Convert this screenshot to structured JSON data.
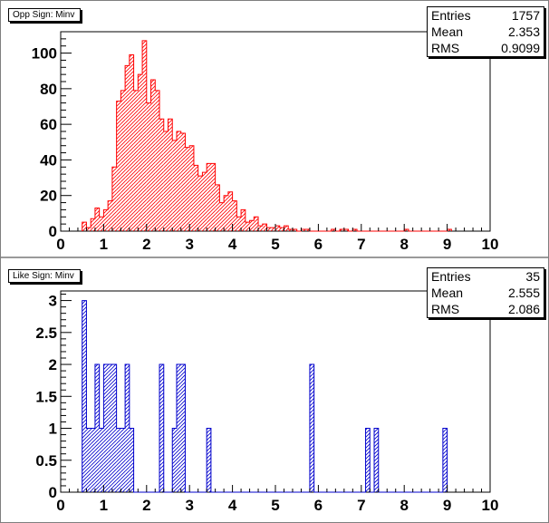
{
  "chart_data": [
    {
      "type": "bar",
      "title": "Opp Sign: Minv",
      "stats": [
        {
          "label": "Entries",
          "value": "1757"
        },
        {
          "label": "Mean",
          "value": "2.353"
        },
        {
          "label": "RMS",
          "value": "0.9099"
        }
      ],
      "xlim": [
        0,
        10
      ],
      "ylim": [
        0,
        112
      ],
      "xticks": [
        0,
        1,
        2,
        3,
        4,
        5,
        6,
        7,
        8,
        9,
        10
      ],
      "yticks": [
        0,
        20,
        40,
        60,
        80,
        100
      ],
      "bin_width": 0.1,
      "x": [
        0.5,
        0.6,
        0.7,
        0.8,
        0.9,
        1.0,
        1.1,
        1.2,
        1.3,
        1.4,
        1.5,
        1.6,
        1.7,
        1.8,
        1.9,
        2.0,
        2.1,
        2.2,
        2.3,
        2.4,
        2.5,
        2.6,
        2.7,
        2.8,
        2.9,
        3.0,
        3.1,
        3.2,
        3.3,
        3.4,
        3.5,
        3.6,
        3.7,
        3.8,
        3.9,
        4.0,
        4.1,
        4.2,
        4.3,
        4.4,
        4.5,
        4.6,
        4.7,
        4.8,
        4.9,
        5.0,
        5.1,
        5.2,
        5.3,
        5.4,
        5.5,
        5.6,
        5.7,
        5.8,
        5.9,
        6.0,
        6.1,
        6.2,
        6.3,
        6.4,
        6.5,
        6.6,
        6.7,
        6.8,
        6.9,
        7.0,
        7.1,
        7.2,
        7.3,
        7.4,
        7.5,
        7.6,
        7.7,
        7.8,
        7.9,
        8.0,
        8.1,
        8.2,
        8.3,
        8.4,
        8.5,
        8.6,
        8.7,
        8.8,
        8.9,
        9.0
      ],
      "values": [
        5,
        2,
        7,
        13,
        8,
        12,
        17,
        36,
        73,
        79,
        93,
        99,
        79,
        88,
        107,
        72,
        85,
        79,
        63,
        56,
        63,
        51,
        56,
        55,
        47,
        48,
        37,
        31,
        33,
        38,
        38,
        26,
        16,
        20,
        22,
        17,
        8,
        12,
        5,
        6,
        8,
        3,
        4,
        2,
        2,
        3,
        2,
        3,
        1,
        1,
        0,
        1,
        1,
        0,
        0,
        0,
        0,
        0,
        1,
        0,
        1,
        1,
        0,
        1,
        0,
        0,
        0,
        0,
        0,
        0,
        0,
        0,
        0,
        0,
        0,
        1,
        0,
        0,
        0,
        0,
        0,
        0,
        0,
        0,
        0,
        1
      ],
      "color": "#ff0000"
    },
    {
      "type": "bar",
      "title": "Like Sign: Minv",
      "stats": [
        {
          "label": "Entries",
          "value": "35"
        },
        {
          "label": "Mean",
          "value": "2.555"
        },
        {
          "label": "RMS",
          "value": "2.086"
        }
      ],
      "xlim": [
        0,
        10
      ],
      "ylim": [
        0,
        3.15
      ],
      "xticks": [
        0,
        1,
        2,
        3,
        4,
        5,
        6,
        7,
        8,
        9,
        10
      ],
      "yticks": [
        0,
        0.5,
        1,
        1.5,
        2,
        2.5,
        3
      ],
      "ytick_labels": [
        "0",
        "0.5",
        "1",
        "1.5",
        "2",
        "2.5",
        "3"
      ],
      "bin_width": 0.1,
      "x": [
        0.5,
        0.6,
        0.7,
        0.8,
        0.9,
        1.0,
        1.1,
        1.2,
        1.3,
        1.4,
        1.5,
        1.6,
        1.7,
        1.8,
        1.9,
        2.0,
        2.1,
        2.2,
        2.3,
        2.4,
        2.5,
        2.6,
        2.7,
        2.8,
        2.9,
        3.0,
        3.1,
        3.2,
        3.3,
        3.4,
        3.5,
        3.6,
        3.7,
        3.8,
        3.9,
        4.0,
        4.1,
        4.2,
        4.3,
        4.4,
        4.5,
        4.6,
        4.7,
        4.8,
        4.9,
        5.0,
        5.1,
        5.2,
        5.3,
        5.4,
        5.5,
        5.6,
        5.7,
        5.8,
        5.9,
        6.0,
        6.1,
        6.2,
        6.3,
        6.4,
        6.5,
        6.6,
        6.7,
        6.8,
        6.9,
        7.0,
        7.1,
        7.2,
        7.3,
        7.4,
        7.5,
        7.6,
        7.7,
        7.8,
        7.9,
        8.0,
        8.1,
        8.2,
        8.3,
        8.4,
        8.5,
        8.6,
        8.7,
        8.8,
        8.9
      ],
      "values": [
        3,
        1,
        1,
        2,
        1,
        2,
        2,
        2,
        1,
        1,
        2,
        1,
        0,
        0,
        0,
        0,
        0,
        0,
        2,
        0,
        0,
        1,
        2,
        2,
        0,
        0,
        0,
        0,
        0,
        1,
        0,
        0,
        0,
        0,
        0,
        0,
        0,
        0,
        0,
        0,
        0,
        0,
        0,
        0,
        0,
        0,
        0,
        0,
        0,
        0,
        0,
        0,
        0,
        2,
        0,
        0,
        0,
        0,
        0,
        0,
        0,
        0,
        0,
        0,
        0,
        0,
        1,
        0,
        1,
        0,
        0,
        0,
        0,
        0,
        0,
        0,
        0,
        0,
        0,
        0,
        0,
        0,
        0,
        0,
        1
      ],
      "color": "#0000cc"
    }
  ]
}
